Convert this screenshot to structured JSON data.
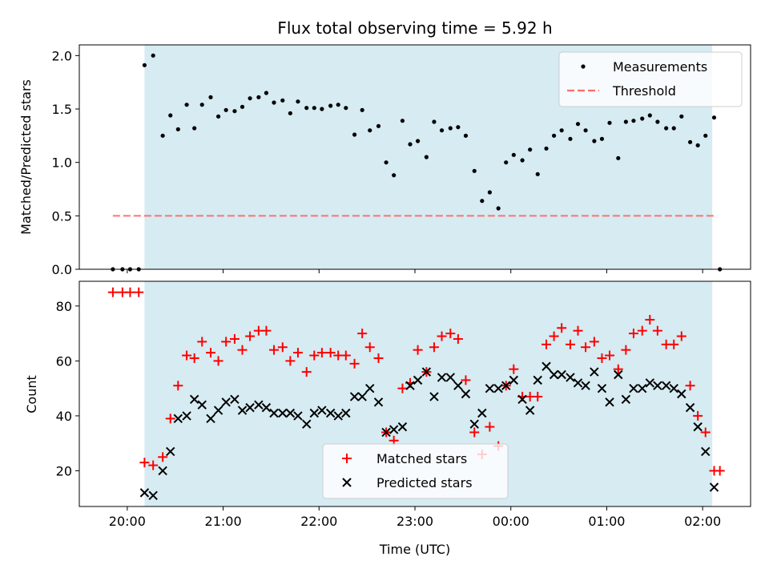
{
  "chart_data": [
    {
      "type": "scatter",
      "title": "Flux total observing time = 5.92 h",
      "xlabel": "",
      "ylabel": "Matched/Predicted stars",
      "ylim": [
        0,
        2.1
      ],
      "yticks": [
        "0.0",
        "0.5",
        "1.0",
        "1.5",
        "2.0"
      ],
      "ytick_values": [
        0,
        0.5,
        1.0,
        1.5,
        2.0
      ],
      "xlim_hours": [
        19.5,
        26.5
      ],
      "shaded_range_hours": [
        20.18,
        26.1
      ],
      "shaded_color": "#add8e6",
      "legend_position": "top-right",
      "threshold": {
        "name": "Threshold",
        "value": 0.5,
        "x_hours": [
          19.85,
          26.15
        ],
        "color": "#ff6b6b"
      },
      "series": [
        {
          "name": "Measurements",
          "color": "#000000",
          "marker": "dot",
          "x_hours": [
            19.85,
            19.95,
            20.03,
            20.12,
            20.18,
            20.27,
            20.37,
            20.45,
            20.53,
            20.62,
            20.7,
            20.78,
            20.87,
            20.95,
            21.03,
            21.12,
            21.2,
            21.28,
            21.37,
            21.45,
            21.53,
            21.62,
            21.7,
            21.78,
            21.87,
            21.95,
            22.03,
            22.12,
            22.2,
            22.28,
            22.37,
            22.45,
            22.53,
            22.62,
            22.7,
            22.78,
            22.87,
            22.95,
            23.03,
            23.12,
            23.2,
            23.28,
            23.37,
            23.45,
            23.53,
            23.62,
            23.7,
            23.78,
            23.87,
            23.95,
            24.03,
            24.12,
            24.2,
            24.28,
            24.37,
            24.45,
            24.53,
            24.62,
            24.7,
            24.78,
            24.87,
            24.95,
            25.03,
            25.12,
            25.2,
            25.28,
            25.37,
            25.45,
            25.53,
            25.62,
            25.7,
            25.78,
            25.87,
            25.95,
            26.03,
            26.12,
            26.18
          ],
          "values": [
            0,
            0,
            0,
            0,
            1.91,
            2.0,
            1.25,
            1.44,
            1.31,
            1.54,
            1.32,
            1.54,
            1.61,
            1.43,
            1.49,
            1.48,
            1.52,
            1.6,
            1.61,
            1.65,
            1.56,
            1.58,
            1.46,
            1.57,
            1.51,
            1.51,
            1.5,
            1.53,
            1.54,
            1.51,
            1.26,
            1.49,
            1.3,
            1.34,
            1.0,
            0.88,
            1.39,
            1.17,
            1.2,
            1.05,
            1.38,
            1.3,
            1.32,
            1.33,
            1.25,
            0.92,
            0.64,
            0.72,
            0.57,
            1.0,
            1.07,
            1.02,
            1.12,
            0.89,
            1.13,
            1.25,
            1.3,
            1.22,
            1.36,
            1.3,
            1.2,
            1.22,
            1.37,
            1.04,
            1.38,
            1.39,
            1.41,
            1.44,
            1.38,
            1.32,
            1.32,
            1.43,
            1.19,
            1.16,
            1.25,
            1.42,
            0
          ]
        }
      ]
    },
    {
      "type": "scatter",
      "title": "",
      "xlabel": "Time (UTC)",
      "ylabel": "Count",
      "ylim": [
        7,
        89
      ],
      "yticks": [
        "20",
        "40",
        "60",
        "80"
      ],
      "ytick_values": [
        20,
        40,
        60,
        80
      ],
      "xlim_hours": [
        19.5,
        26.5
      ],
      "xticks": [
        "20:00",
        "21:00",
        "22:00",
        "23:00",
        "00:00",
        "01:00",
        "02:00"
      ],
      "xtick_hours": [
        20,
        21,
        22,
        23,
        24,
        25,
        26
      ],
      "shaded_range_hours": [
        20.18,
        26.1
      ],
      "shaded_color": "#add8e6",
      "legend_position": "lower center",
      "series": [
        {
          "name": "Matched stars",
          "color": "#ff0000",
          "marker": "plus",
          "x_hours": [
            19.85,
            19.95,
            20.03,
            20.12,
            20.18,
            20.27,
            20.37,
            20.45,
            20.53,
            20.62,
            20.7,
            20.78,
            20.87,
            20.95,
            21.03,
            21.12,
            21.2,
            21.28,
            21.37,
            21.45,
            21.53,
            21.62,
            21.7,
            21.78,
            21.87,
            21.95,
            22.03,
            22.12,
            22.2,
            22.28,
            22.37,
            22.45,
            22.53,
            22.62,
            22.7,
            22.78,
            22.87,
            22.95,
            23.03,
            23.12,
            23.2,
            23.28,
            23.37,
            23.45,
            23.53,
            23.62,
            23.7,
            23.78,
            23.87,
            23.95,
            24.03,
            24.12,
            24.2,
            24.28,
            24.37,
            24.45,
            24.53,
            24.62,
            24.7,
            24.78,
            24.87,
            24.95,
            25.03,
            25.12,
            25.2,
            25.28,
            25.37,
            25.45,
            25.53,
            25.62,
            25.7,
            25.78,
            25.87,
            25.95,
            26.03,
            26.12,
            26.18
          ],
          "values": [
            85,
            85,
            85,
            85,
            23,
            22,
            25,
            39,
            51,
            62,
            61,
            67,
            63,
            60,
            67,
            68,
            64,
            69,
            71,
            71,
            64,
            65,
            60,
            63,
            56,
            62,
            63,
            63,
            62,
            62,
            59,
            70,
            65,
            61,
            34,
            31,
            50,
            52,
            64,
            56,
            65,
            69,
            70,
            68,
            53,
            34,
            26,
            36,
            29,
            51,
            57,
            47,
            47,
            47,
            66,
            69,
            72,
            66,
            71,
            65,
            67,
            61,
            62,
            57,
            64,
            70,
            71,
            75,
            71,
            66,
            66,
            69,
            51,
            40,
            34,
            20,
            20
          ]
        },
        {
          "name": "Predicted stars",
          "color": "#000000",
          "marker": "x",
          "x_hours": [
            20.18,
            20.27,
            20.37,
            20.45,
            20.53,
            20.62,
            20.7,
            20.78,
            20.87,
            20.95,
            21.03,
            21.12,
            21.2,
            21.28,
            21.37,
            21.45,
            21.53,
            21.62,
            21.7,
            21.78,
            21.87,
            21.95,
            22.03,
            22.12,
            22.2,
            22.28,
            22.37,
            22.45,
            22.53,
            22.62,
            22.7,
            22.78,
            22.87,
            22.95,
            23.03,
            23.12,
            23.2,
            23.28,
            23.37,
            23.45,
            23.53,
            23.62,
            23.7,
            23.78,
            23.87,
            23.95,
            24.03,
            24.12,
            24.2,
            24.28,
            24.37,
            24.45,
            24.53,
            24.62,
            24.7,
            24.78,
            24.87,
            24.95,
            25.03,
            25.12,
            25.2,
            25.28,
            25.37,
            25.45,
            25.53,
            25.62,
            25.7,
            25.78,
            25.87,
            25.95,
            26.03,
            26.12
          ],
          "values": [
            12,
            11,
            20,
            27,
            39,
            40,
            46,
            44,
            39,
            42,
            45,
            46,
            42,
            43,
            44,
            43,
            41,
            41,
            41,
            40,
            37,
            41,
            42,
            41,
            40,
            41,
            47,
            47,
            50,
            45,
            34,
            35,
            36,
            51,
            53,
            56,
            47,
            54,
            54,
            51,
            48,
            37,
            41,
            50,
            50,
            51,
            53,
            46,
            42,
            53,
            58,
            55,
            55,
            54,
            52,
            51,
            56,
            50,
            45,
            55,
            46,
            50,
            50,
            52,
            51,
            51,
            50,
            48,
            43,
            36,
            27,
            14
          ]
        }
      ]
    }
  ]
}
